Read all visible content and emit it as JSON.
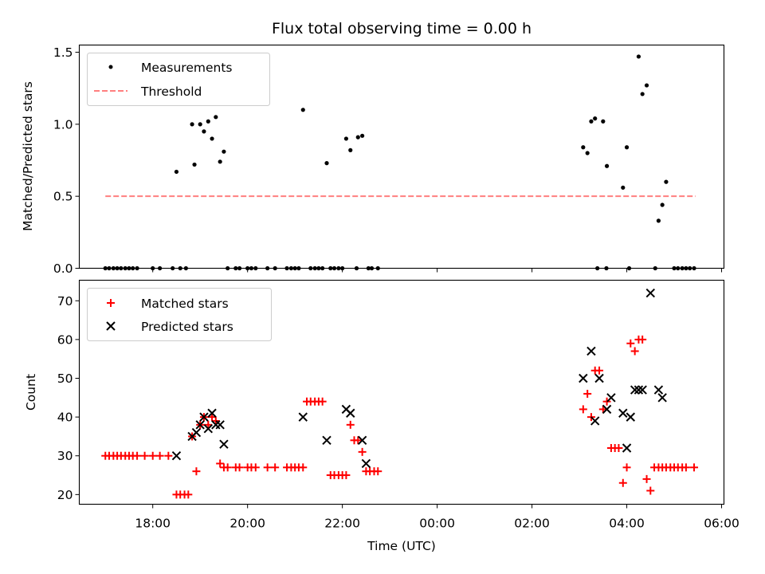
{
  "chart_data": {
    "type": "scatter",
    "title": "Flux total observing time = 0.00 h",
    "xlabel": "Time (UTC)",
    "x_unit": "hours since 17:00 UTC",
    "xlim": [
      -0.55,
      13.05
    ],
    "xticks": [
      {
        "v": 1,
        "label": "18:00"
      },
      {
        "v": 3,
        "label": "20:00"
      },
      {
        "v": 5,
        "label": "22:00"
      },
      {
        "v": 7,
        "label": "00:00"
      },
      {
        "v": 9,
        "label": "02:00"
      },
      {
        "v": 11,
        "label": "04:00"
      },
      {
        "v": 13,
        "label": "06:00"
      }
    ],
    "panels": [
      {
        "id": "ratio",
        "ylabel": "Matched/Predicted stars",
        "ylim": [
          0,
          1.55
        ],
        "yticks": [
          {
            "v": 0,
            "label": "0.0"
          },
          {
            "v": 0.5,
            "label": "0.5"
          },
          {
            "v": 1.0,
            "label": "1.0"
          },
          {
            "v": 1.5,
            "label": "1.5"
          }
        ],
        "legend": [
          {
            "name": "Measurements",
            "marker": "dot",
            "color": "#000000"
          },
          {
            "name": "Threshold",
            "marker": "dash",
            "color": "#ff7f7f"
          }
        ],
        "threshold": {
          "value": 0.5,
          "x_from": 0.0,
          "x_to": 12.45,
          "color": "#ff7f7f"
        },
        "series": [
          {
            "name": "Measurements",
            "marker": "dot",
            "color": "#000000",
            "points": [
              [
                0.0,
                0
              ],
              [
                0.08,
                0
              ],
              [
                0.17,
                0
              ],
              [
                0.25,
                0
              ],
              [
                0.33,
                0
              ],
              [
                0.42,
                0
              ],
              [
                0.5,
                0
              ],
              [
                0.58,
                0
              ],
              [
                0.67,
                0
              ],
              [
                1.0,
                0
              ],
              [
                1.15,
                0
              ],
              [
                1.42,
                0
              ],
              [
                1.58,
                0
              ],
              [
                1.7,
                0
              ],
              [
                1.5,
                0.67
              ],
              [
                1.83,
                1.0
              ],
              [
                1.88,
                0.72
              ],
              [
                2.0,
                1.0
              ],
              [
                2.08,
                0.95
              ],
              [
                2.17,
                1.02
              ],
              [
                2.25,
                0.9
              ],
              [
                2.33,
                1.05
              ],
              [
                2.42,
                0.74
              ],
              [
                2.5,
                0.81
              ],
              [
                2.58,
                0
              ],
              [
                2.75,
                0
              ],
              [
                2.83,
                0
              ],
              [
                3.0,
                0
              ],
              [
                3.08,
                0
              ],
              [
                3.17,
                0
              ],
              [
                3.42,
                0
              ],
              [
                3.58,
                0
              ],
              [
                3.83,
                0
              ],
              [
                3.92,
                0
              ],
              [
                4.0,
                0
              ],
              [
                4.08,
                0
              ],
              [
                4.33,
                0
              ],
              [
                4.42,
                0
              ],
              [
                4.5,
                0
              ],
              [
                4.58,
                0
              ],
              [
                4.75,
                0
              ],
              [
                4.83,
                0
              ],
              [
                4.92,
                0
              ],
              [
                5.0,
                0
              ],
              [
                5.3,
                0
              ],
              [
                5.55,
                0
              ],
              [
                5.62,
                0
              ],
              [
                5.75,
                0
              ],
              [
                4.17,
                1.1
              ],
              [
                4.67,
                0.73
              ],
              [
                5.08,
                0.9
              ],
              [
                5.17,
                0.82
              ],
              [
                5.33,
                0.91
              ],
              [
                5.42,
                0.92
              ],
              [
                10.38,
                0
              ],
              [
                10.57,
                0
              ],
              [
                11.05,
                0
              ],
              [
                11.6,
                0
              ],
              [
                12.0,
                0
              ],
              [
                12.08,
                0
              ],
              [
                12.17,
                0
              ],
              [
                12.25,
                0
              ],
              [
                12.33,
                0
              ],
              [
                12.42,
                0
              ],
              [
                10.08,
                0.84
              ],
              [
                10.17,
                0.8
              ],
              [
                10.25,
                1.02
              ],
              [
                10.33,
                1.04
              ],
              [
                10.5,
                1.02
              ],
              [
                10.58,
                0.71
              ],
              [
                10.92,
                0.56
              ],
              [
                11.0,
                0.84
              ],
              [
                11.25,
                1.47
              ],
              [
                11.33,
                1.21
              ],
              [
                11.42,
                1.27
              ],
              [
                11.67,
                0.33
              ],
              [
                11.75,
                0.44
              ],
              [
                11.83,
                0.6
              ]
            ]
          }
        ]
      },
      {
        "id": "counts",
        "ylabel": "Count",
        "ylim": [
          17.5,
          75.3
        ],
        "yticks": [
          {
            "v": 20,
            "label": "20"
          },
          {
            "v": 30,
            "label": "30"
          },
          {
            "v": 40,
            "label": "40"
          },
          {
            "v": 50,
            "label": "50"
          },
          {
            "v": 60,
            "label": "60"
          },
          {
            "v": 70,
            "label": "70"
          }
        ],
        "legend": [
          {
            "name": "Matched stars",
            "marker": "plus",
            "color": "#ff0000"
          },
          {
            "name": "Predicted stars",
            "marker": "x",
            "color": "#000000"
          }
        ],
        "series": [
          {
            "name": "Matched stars",
            "marker": "plus",
            "color": "#ff0000",
            "points": [
              [
                0.0,
                30
              ],
              [
                0.08,
                30
              ],
              [
                0.17,
                30
              ],
              [
                0.25,
                30
              ],
              [
                0.33,
                30
              ],
              [
                0.42,
                30
              ],
              [
                0.5,
                30
              ],
              [
                0.58,
                30
              ],
              [
                0.67,
                30
              ],
              [
                0.83,
                30
              ],
              [
                1.0,
                30
              ],
              [
                1.15,
                30
              ],
              [
                1.33,
                30
              ],
              [
                1.5,
                20
              ],
              [
                1.58,
                20
              ],
              [
                1.67,
                20
              ],
              [
                1.75,
                20
              ],
              [
                1.83,
                35
              ],
              [
                1.92,
                26
              ],
              [
                2.0,
                38
              ],
              [
                2.08,
                40
              ],
              [
                2.17,
                38
              ],
              [
                2.25,
                40
              ],
              [
                2.33,
                39
              ],
              [
                2.42,
                28
              ],
              [
                2.5,
                27
              ],
              [
                2.58,
                27
              ],
              [
                2.75,
                27
              ],
              [
                2.83,
                27
              ],
              [
                3.0,
                27
              ],
              [
                3.08,
                27
              ],
              [
                3.17,
                27
              ],
              [
                3.42,
                27
              ],
              [
                3.58,
                27
              ],
              [
                3.83,
                27
              ],
              [
                3.92,
                27
              ],
              [
                4.0,
                27
              ],
              [
                4.08,
                27
              ],
              [
                4.17,
                27
              ],
              [
                4.25,
                44
              ],
              [
                4.33,
                44
              ],
              [
                4.42,
                44
              ],
              [
                4.5,
                44
              ],
              [
                4.58,
                44
              ],
              [
                4.75,
                25
              ],
              [
                4.83,
                25
              ],
              [
                4.92,
                25
              ],
              [
                5.0,
                25
              ],
              [
                5.08,
                25
              ],
              [
                5.17,
                38
              ],
              [
                5.25,
                34
              ],
              [
                5.33,
                34
              ],
              [
                5.42,
                31
              ],
              [
                5.5,
                26
              ],
              [
                5.58,
                26
              ],
              [
                5.67,
                26
              ],
              [
                5.75,
                26
              ],
              [
                10.08,
                42
              ],
              [
                10.17,
                46
              ],
              [
                10.25,
                40
              ],
              [
                10.33,
                52
              ],
              [
                10.42,
                52
              ],
              [
                10.5,
                42
              ],
              [
                10.58,
                44
              ],
              [
                10.67,
                32
              ],
              [
                10.75,
                32
              ],
              [
                10.83,
                32
              ],
              [
                10.92,
                23
              ],
              [
                11.0,
                27
              ],
              [
                11.08,
                59
              ],
              [
                11.17,
                57
              ],
              [
                11.25,
                60
              ],
              [
                11.33,
                60
              ],
              [
                11.42,
                24
              ],
              [
                11.5,
                21
              ],
              [
                11.58,
                27
              ],
              [
                11.67,
                27
              ],
              [
                11.75,
                27
              ],
              [
                11.83,
                27
              ],
              [
                11.92,
                27
              ],
              [
                12.0,
                27
              ],
              [
                12.08,
                27
              ],
              [
                12.17,
                27
              ],
              [
                12.25,
                27
              ],
              [
                12.42,
                27
              ]
            ]
          },
          {
            "name": "Predicted stars",
            "marker": "x",
            "color": "#000000",
            "points": [
              [
                1.5,
                30
              ],
              [
                1.83,
                35
              ],
              [
                1.92,
                36
              ],
              [
                2.0,
                38
              ],
              [
                2.08,
                40
              ],
              [
                2.17,
                37
              ],
              [
                2.25,
                41
              ],
              [
                2.33,
                38
              ],
              [
                2.42,
                38
              ],
              [
                2.5,
                33
              ],
              [
                4.17,
                40
              ],
              [
                4.67,
                34
              ],
              [
                5.08,
                42
              ],
              [
                5.17,
                41
              ],
              [
                5.42,
                34
              ],
              [
                5.5,
                28
              ],
              [
                10.08,
                50
              ],
              [
                10.25,
                57
              ],
              [
                10.33,
                39
              ],
              [
                10.42,
                50
              ],
              [
                10.58,
                42
              ],
              [
                10.67,
                45
              ],
              [
                10.92,
                41
              ],
              [
                11.0,
                32
              ],
              [
                11.08,
                40
              ],
              [
                11.17,
                47
              ],
              [
                11.25,
                47
              ],
              [
                11.33,
                47
              ],
              [
                11.5,
                72
              ],
              [
                11.67,
                47
              ],
              [
                11.75,
                45
              ]
            ]
          }
        ]
      }
    ]
  }
}
